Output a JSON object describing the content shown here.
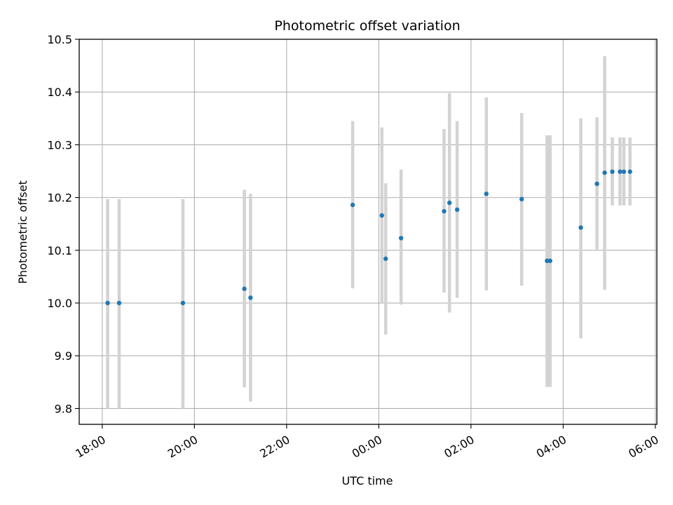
{
  "chart_data": {
    "type": "scatter",
    "title": "Photometric offset variation",
    "xlabel": "UTC time",
    "ylabel": "Photometric offset",
    "x_unit": "hours (continuous from 18:00 day 1)",
    "xlim": [
      "17:30",
      "06:02"
    ],
    "ylim": [
      9.77,
      10.5
    ],
    "grid": true,
    "x_ticks": [
      "18:00",
      "20:00",
      "22:00",
      "00:00",
      "02:00",
      "04:00",
      "06:00"
    ],
    "y_ticks": [
      "9.8",
      "9.9",
      "10.0",
      "10.1",
      "10.2",
      "10.3",
      "10.4",
      "10.5"
    ],
    "point_color": "#1f77b4",
    "errorbar_color": "#d3d3d3",
    "series": [
      {
        "points": [
          {
            "x": "18:07",
            "y": 10.0,
            "ylow": 9.8,
            "yhigh": 10.197
          },
          {
            "x": "18:22",
            "y": 10.0,
            "ylow": 9.8,
            "yhigh": 10.197
          },
          {
            "x": "19:45",
            "y": 10.0,
            "ylow": 9.8,
            "yhigh": 10.197
          },
          {
            "x": "21:05",
            "y": 10.027,
            "ylow": 9.84,
            "yhigh": 10.215
          },
          {
            "x": "21:13",
            "y": 10.01,
            "ylow": 9.813,
            "yhigh": 10.207
          },
          {
            "x": "23:26",
            "y": 10.186,
            "ylow": 10.028,
            "yhigh": 10.345
          },
          {
            "x": "00:04",
            "y": 10.166,
            "ylow": 10.0,
            "yhigh": 10.333
          },
          {
            "x": "00:09",
            "y": 10.084,
            "ylow": 9.94,
            "yhigh": 10.227
          },
          {
            "x": "00:29",
            "y": 10.123,
            "ylow": 9.997,
            "yhigh": 10.253
          },
          {
            "x": "01:25",
            "y": 10.174,
            "ylow": 10.02,
            "yhigh": 10.33
          },
          {
            "x": "01:32",
            "y": 10.19,
            "ylow": 9.982,
            "yhigh": 10.398
          },
          {
            "x": "01:42",
            "y": 10.177,
            "ylow": 10.01,
            "yhigh": 10.345
          },
          {
            "x": "02:20",
            "y": 10.207,
            "ylow": 10.024,
            "yhigh": 10.39
          },
          {
            "x": "03:06",
            "y": 10.197,
            "ylow": 10.033,
            "yhigh": 10.36
          },
          {
            "x": "03:39",
            "y": 10.08,
            "ylow": 9.841,
            "yhigh": 10.318
          },
          {
            "x": "03:43",
            "y": 10.08,
            "ylow": 9.841,
            "yhigh": 10.318
          },
          {
            "x": "04:23",
            "y": 10.143,
            "ylow": 9.933,
            "yhigh": 10.35
          },
          {
            "x": "04:44",
            "y": 10.226,
            "ylow": 10.1,
            "yhigh": 10.352
          },
          {
            "x": "04:54",
            "y": 10.247,
            "ylow": 10.025,
            "yhigh": 10.468
          },
          {
            "x": "05:04",
            "y": 10.249,
            "ylow": 10.185,
            "yhigh": 10.314
          },
          {
            "x": "05:14",
            "y": 10.249,
            "ylow": 10.185,
            "yhigh": 10.314
          },
          {
            "x": "05:19",
            "y": 10.249,
            "ylow": 10.185,
            "yhigh": 10.314
          },
          {
            "x": "05:27",
            "y": 10.249,
            "ylow": 10.185,
            "yhigh": 10.314
          }
        ]
      }
    ]
  }
}
